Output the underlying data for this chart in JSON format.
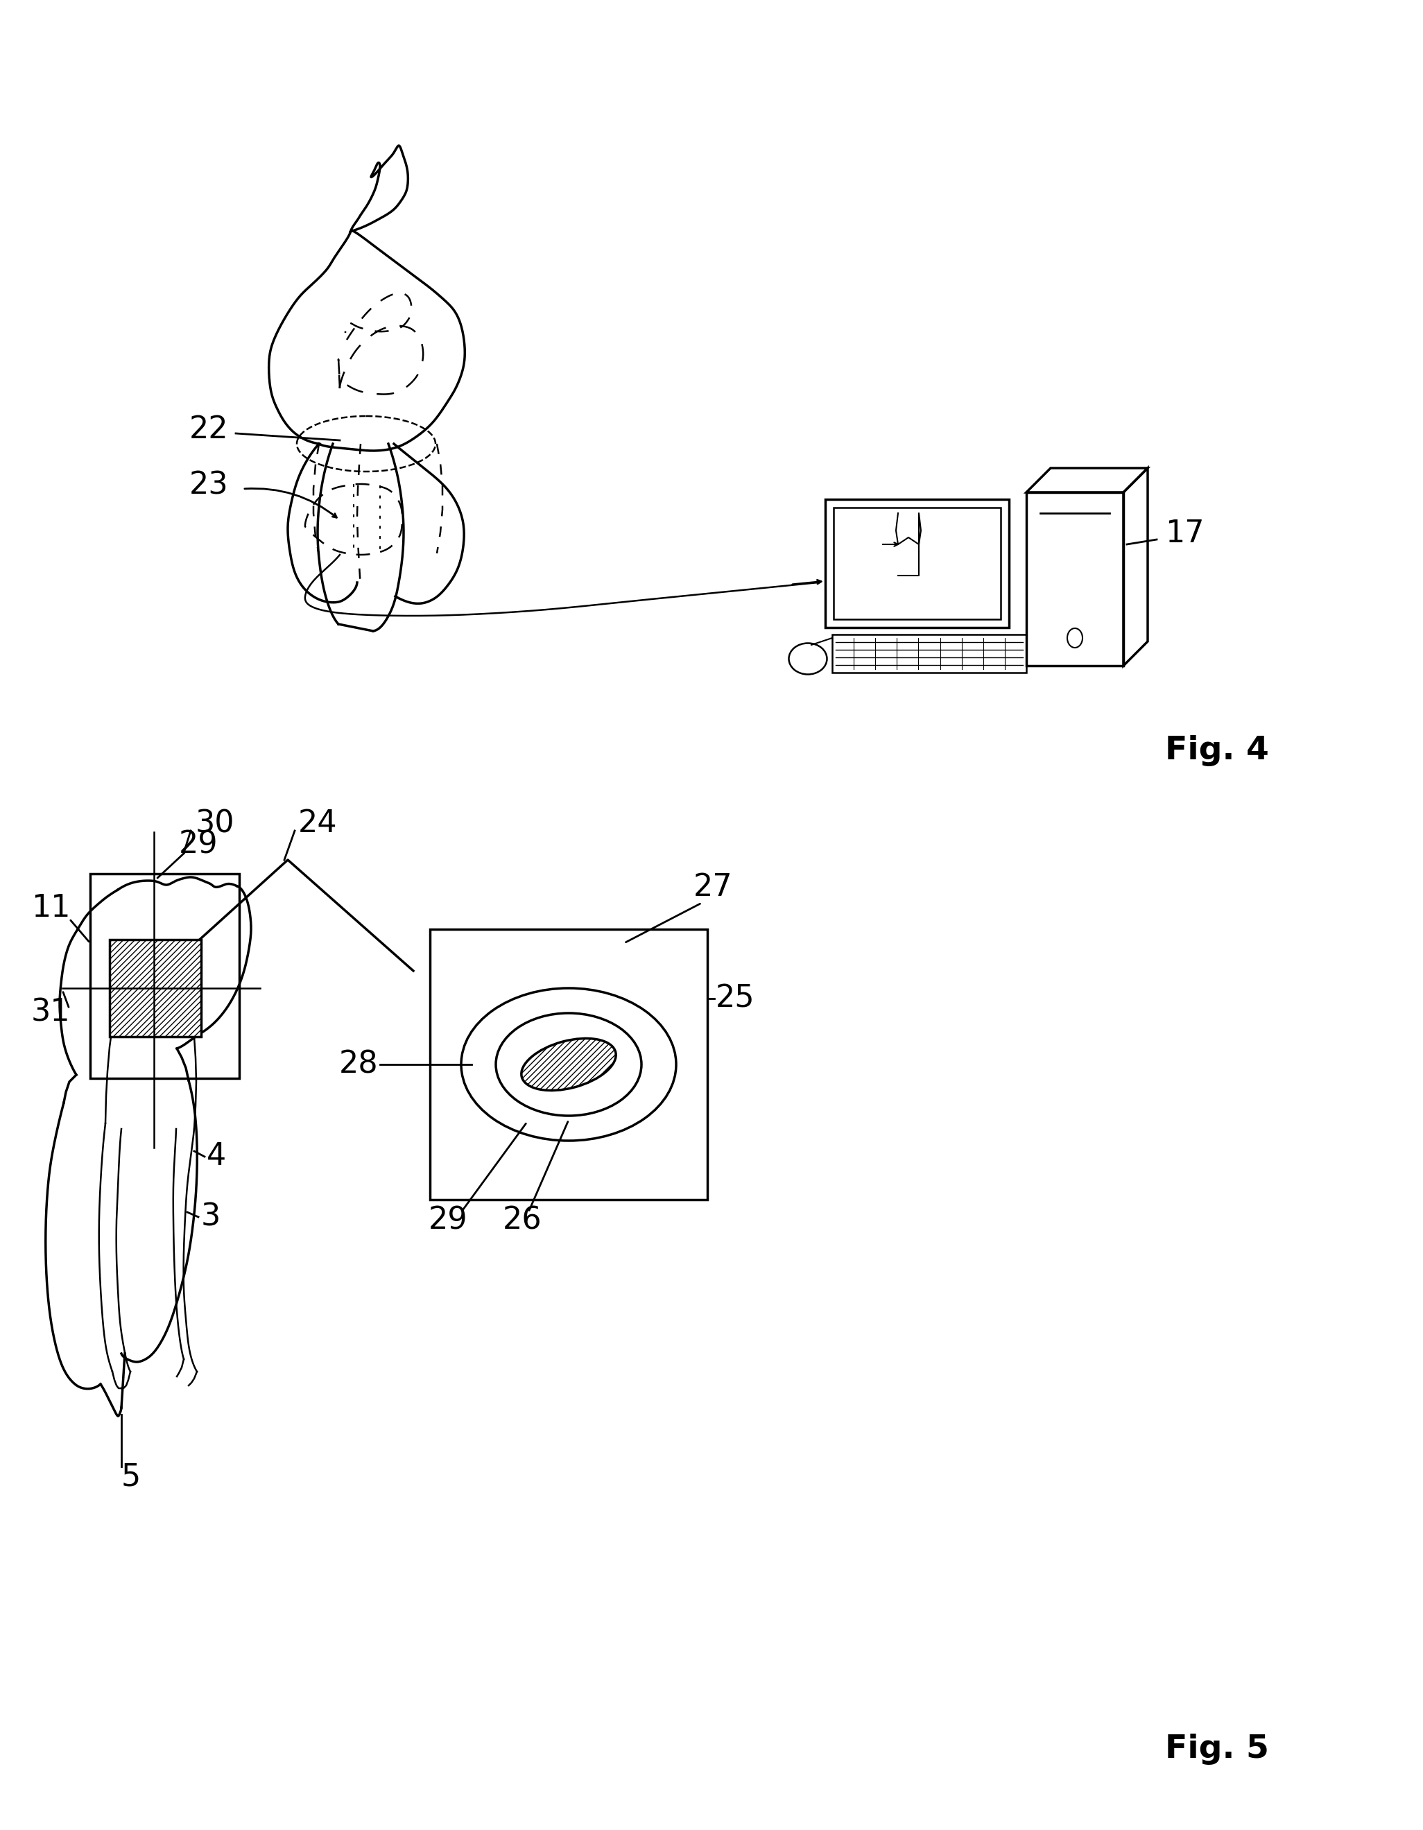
{
  "fig4_label": "Fig. 4",
  "fig5_label": "Fig. 5",
  "bg_color": "#ffffff",
  "line_color": "#000000",
  "font_size_label": 32,
  "font_size_fig": 34
}
